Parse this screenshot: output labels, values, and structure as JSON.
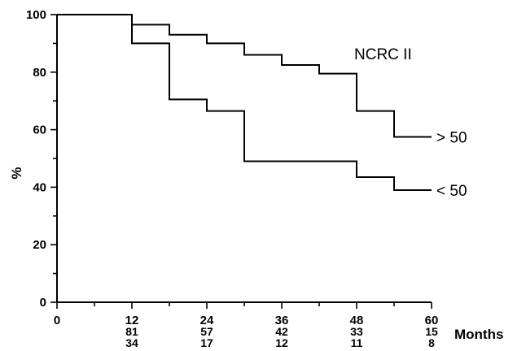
{
  "chart_data": {
    "type": "line",
    "step": true,
    "annotation": "NCRC II",
    "ylabel": "%",
    "xlabel": "Months",
    "xlim": [
      0,
      60
    ],
    "ylim": [
      0,
      100
    ],
    "x_ticks": [
      0,
      12,
      24,
      36,
      48,
      60
    ],
    "y_ticks": [
      0,
      20,
      40,
      60,
      80,
      100
    ],
    "grid": false,
    "color": "#000000",
    "series": [
      {
        "name": "> 50",
        "x": [
          0,
          12,
          18,
          24,
          30,
          36,
          42,
          48,
          54,
          60
        ],
        "y": [
          100,
          96.5,
          93,
          90,
          86,
          82.5,
          79.5,
          66.5,
          57.5,
          57.5
        ]
      },
      {
        "name": "< 50",
        "x": [
          0,
          12,
          18,
          24,
          30,
          48,
          54,
          60
        ],
        "y": [
          100,
          90,
          70.5,
          66.5,
          49,
          43.5,
          39,
          39
        ]
      }
    ],
    "at_risk": [
      {
        "x": [
          12,
          24,
          36,
          48,
          60
        ],
        "values": [
          "81",
          "57",
          "42",
          "33",
          "15"
        ]
      },
      {
        "x": [
          12,
          24,
          36,
          48,
          60
        ],
        "values": [
          "34",
          "17",
          "12",
          "11",
          "8"
        ]
      }
    ]
  }
}
